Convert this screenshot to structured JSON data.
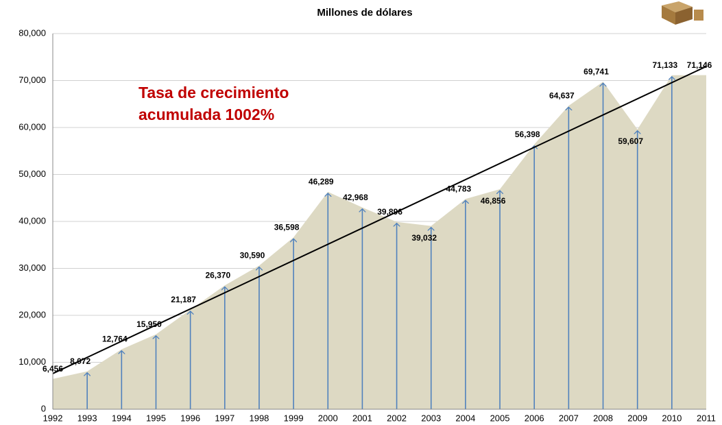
{
  "chart_data": {
    "type": "area",
    "title": "Millones de dólares",
    "annotation": [
      "Tasa de crecimiento",
      "acumulada 1002%"
    ],
    "categories": [
      "1992",
      "1993",
      "1994",
      "1995",
      "1996",
      "1997",
      "1998",
      "1999",
      "2000",
      "2001",
      "2002",
      "2003",
      "2004",
      "2005",
      "2006",
      "2007",
      "2008",
      "2009",
      "2010",
      "2011"
    ],
    "values": [
      6456,
      8072,
      12764,
      15950,
      21187,
      26370,
      30590,
      36598,
      46289,
      42968,
      39896,
      39032,
      44783,
      46856,
      56398,
      64637,
      69741,
      59607,
      71133,
      71146
    ],
    "value_labels": [
      "6,456",
      "8,072",
      "12,764",
      "15,950",
      "21,187",
      "26,370",
      "30,590",
      "36,598",
      "46,289",
      "42,968",
      "39,896",
      "39,032",
      "44,783",
      "46,856",
      "56,398",
      "64,637",
      "69,741",
      "59,607",
      "71,133",
      "71,146"
    ],
    "color": "#ddd9c3",
    "arrow_color": "#4f81bd",
    "trend": [
      7600,
      73000
    ],
    "ylim": [
      0,
      80000
    ],
    "yticks": [
      0,
      {
        "value": 10000,
        "label": "10,000"
      },
      {
        "value": 20000,
        "label": "20,000"
      },
      {
        "value": 30000,
        "label": "30,000"
      },
      {
        "value": 40000,
        "label": "40,000"
      },
      {
        "value": 50000,
        "label": "50,000"
      },
      {
        "value": 60000,
        "label": "60,000"
      },
      {
        "value": 70000,
        "label": "70,000"
      },
      {
        "value": 80000,
        "label": "80,000"
      }
    ],
    "grid": true
  }
}
